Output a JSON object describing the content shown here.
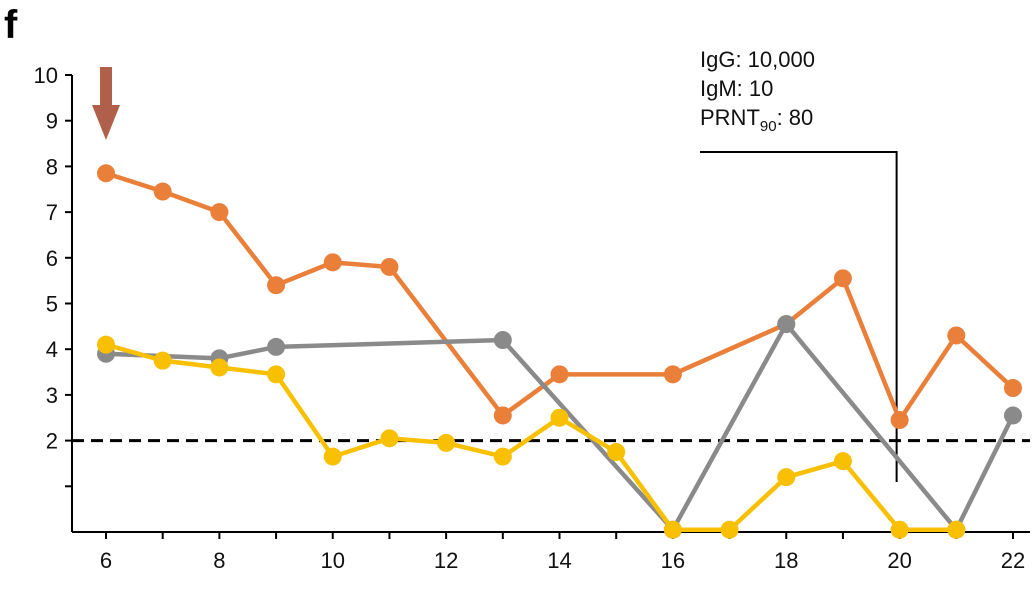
{
  "panel_label": "f",
  "chart_data": {
    "type": "line",
    "ylim": [
      0,
      10
    ],
    "xlim": [
      5.4,
      22.3
    ],
    "x_ticks": [
      6,
      8,
      10,
      12,
      14,
      16,
      18,
      20,
      22
    ],
    "y_tick_values": [
      2,
      3,
      4,
      5,
      6,
      7,
      8,
      9,
      10
    ],
    "y_tick_labels": [
      "2",
      "3",
      "4",
      "5",
      "6",
      "7",
      "8",
      "9",
      "10"
    ],
    "threshold": 2,
    "grid": false,
    "series": [
      {
        "color": "#ea7f3a",
        "x": [
          6,
          7,
          8,
          9,
          10,
          11,
          13,
          14,
          16,
          18,
          19,
          20,
          21,
          22
        ],
        "y": [
          7.85,
          7.45,
          7.0,
          5.4,
          5.9,
          5.8,
          2.55,
          3.45,
          3.45,
          4.55,
          5.55,
          2.45,
          4.3,
          3.15
        ]
      },
      {
        "color": "#8a8a8a",
        "x": [
          6,
          8,
          9,
          13,
          16,
          18,
          21,
          22
        ],
        "y": [
          3.9,
          3.8,
          4.05,
          4.2,
          0.05,
          4.55,
          0.05,
          2.55
        ]
      },
      {
        "color": "#f8c000",
        "x": [
          6,
          7,
          8,
          9,
          10,
          11,
          12,
          13,
          14,
          15,
          16,
          17,
          18,
          19,
          20,
          21
        ],
        "y": [
          4.1,
          3.75,
          3.6,
          3.45,
          1.65,
          2.05,
          1.95,
          1.65,
          2.5,
          1.75,
          0.05,
          0.05,
          1.2,
          1.55,
          0.05,
          0.05
        ]
      }
    ],
    "annotation": {
      "lines": [
        {
          "text": "IgG: 10,000"
        },
        {
          "text": "IgM: 10"
        },
        {
          "prefix": "PRNT",
          "subscript": "90",
          "suffix": ": 80"
        }
      ],
      "x": 20
    },
    "arrow": {
      "x": 6,
      "color": "#b0604a"
    }
  }
}
